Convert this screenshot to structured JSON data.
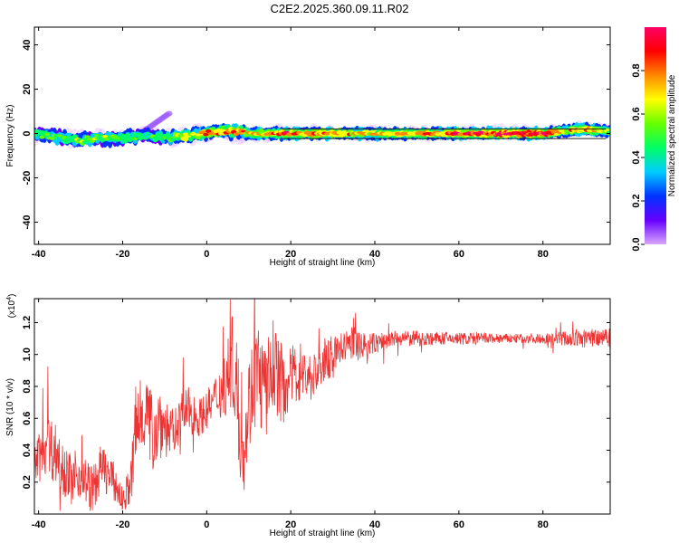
{
  "page": {
    "title": "C2E2.2025.360.09.11.R02"
  },
  "chart_data": [
    {
      "type": "heatmap",
      "xlabel": "Height of straight line (km)",
      "ylabel": "Frequency (Hz)",
      "xlim": [
        -41,
        96
      ],
      "ylim": [
        -50,
        48
      ],
      "xticks": [
        -40,
        -20,
        0,
        20,
        40,
        60,
        80
      ],
      "yticks": [
        40,
        20,
        0,
        -20,
        -40
      ],
      "colorbar": {
        "label": "Normalized spectral amplitude",
        "range": [
          0.0,
          1.0
        ],
        "ticks": [
          "0.0",
          "0.2",
          "0.4",
          "0.6",
          "0.8"
        ],
        "tick_values": [
          0.0,
          0.2,
          0.4,
          0.6,
          0.8
        ],
        "colors": [
          "#d9a6ff",
          "#6600ff",
          "#0033ff",
          "#00ccff",
          "#00ff66",
          "#66ff00",
          "#ffff00",
          "#ff8800",
          "#ff0000",
          "#ff0066"
        ]
      },
      "ridge": {
        "description_values": "center frequency ≈ 0 Hz across heights; upward branch from -15 to -9 km reaching ~9 Hz",
        "x": [
          -41,
          -35,
          -30,
          -25,
          -20,
          -15,
          -10,
          -5,
          0,
          5,
          10,
          20,
          30,
          40,
          50,
          60,
          70,
          80,
          85,
          90,
          95
        ],
        "y": [
          0,
          -2,
          -3,
          -2,
          -2,
          -1,
          -2,
          -1,
          0,
          1,
          0,
          0,
          0,
          0,
          0,
          0,
          0,
          0,
          1,
          2,
          1
        ],
        "amplitude": [
          0.45,
          0.55,
          0.6,
          0.6,
          0.55,
          0.45,
          0.55,
          0.7,
          0.8,
          0.85,
          0.75,
          0.9,
          0.8,
          0.75,
          0.8,
          0.9,
          1.0,
          1.0,
          0.7,
          0.9,
          0.6
        ]
      }
    },
    {
      "type": "line",
      "xlabel": "Height of straight line (km)",
      "ylabel": "SNR (10 * v/v)",
      "yscale_label": "(x10",
      "yscale_exp": "4",
      "yscale_close": ")",
      "xlim": [
        -41,
        96
      ],
      "ylim": [
        0.0,
        1.35
      ],
      "xticks": [
        -40,
        -20,
        0,
        20,
        40,
        60,
        80
      ],
      "yticks": [
        0.2,
        0.4,
        0.6,
        0.8,
        1.0,
        1.2
      ],
      "color": "#ee3333",
      "x": [
        -41,
        -38,
        -35,
        -32,
        -30,
        -27,
        -25,
        -22,
        -20,
        -18,
        -17,
        -15,
        -13,
        -11,
        -10,
        -8,
        -6,
        -4,
        -2,
        0,
        2,
        4,
        6,
        7,
        8,
        9,
        10,
        12,
        14,
        16,
        18,
        20,
        22,
        25,
        28,
        30,
        33,
        35,
        38,
        40,
        45,
        50,
        55,
        60,
        65,
        70,
        75,
        80,
        85,
        90,
        95
      ],
      "y": [
        0.3,
        0.45,
        0.35,
        0.2,
        0.25,
        0.15,
        0.3,
        0.2,
        0.08,
        0.2,
        0.5,
        0.7,
        0.5,
        0.6,
        0.55,
        0.5,
        0.62,
        0.65,
        0.6,
        0.65,
        0.72,
        0.8,
        0.95,
        0.85,
        0.45,
        0.4,
        0.7,
        0.9,
        0.75,
        0.95,
        0.8,
        0.85,
        0.9,
        0.85,
        0.95,
        1.0,
        1.05,
        1.08,
        1.05,
        1.07,
        1.1,
        1.1,
        1.1,
        1.1,
        1.1,
        1.1,
        1.1,
        1.1,
        1.1,
        1.1,
        1.12
      ],
      "noise_amplitude": [
        0.15,
        0.2,
        0.2,
        0.15,
        0.15,
        0.15,
        0.15,
        0.12,
        0.08,
        0.15,
        0.35,
        0.3,
        0.25,
        0.25,
        0.2,
        0.15,
        0.15,
        0.15,
        0.12,
        0.12,
        0.15,
        0.2,
        0.3,
        0.3,
        0.3,
        0.25,
        0.3,
        0.35,
        0.3,
        0.3,
        0.25,
        0.2,
        0.2,
        0.15,
        0.15,
        0.12,
        0.1,
        0.1,
        0.08,
        0.07,
        0.05,
        0.05,
        0.04,
        0.04,
        0.04,
        0.03,
        0.03,
        0.03,
        0.05,
        0.06,
        0.07
      ]
    }
  ]
}
